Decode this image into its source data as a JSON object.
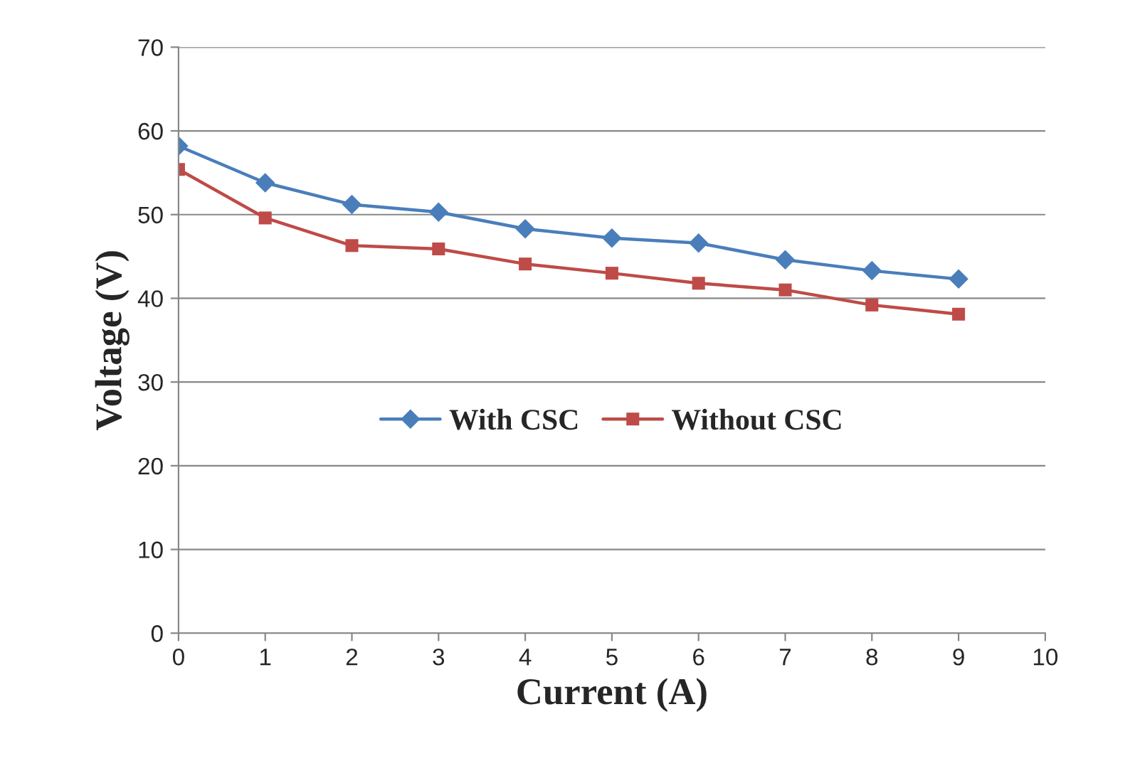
{
  "chart_data": {
    "type": "line",
    "xlabel": "Current (A)",
    "ylabel": "Voltage (V)",
    "x": [
      0,
      1,
      2,
      3,
      4,
      5,
      6,
      7,
      8,
      9
    ],
    "series": [
      {
        "name": "With CSC",
        "color": "#4a7ebb",
        "marker": "diamond",
        "values": [
          58.2,
          53.8,
          51.2,
          50.3,
          48.3,
          47.2,
          46.6,
          44.6,
          43.3,
          42.3
        ]
      },
      {
        "name": "Without CSC",
        "color": "#be4b48",
        "marker": "square",
        "values": [
          55.4,
          49.6,
          46.3,
          45.9,
          44.1,
          43.0,
          41.8,
          41.0,
          39.2,
          38.1
        ]
      }
    ],
    "xlim": [
      0,
      10
    ],
    "xticks": [
      0,
      1,
      2,
      3,
      4,
      5,
      6,
      7,
      8,
      9,
      10
    ],
    "ylim": [
      0,
      70
    ],
    "yticks": [
      0,
      10,
      20,
      30,
      40,
      50,
      60,
      70
    ],
    "grid": "y",
    "legend": "center",
    "line_style": "solid"
  }
}
